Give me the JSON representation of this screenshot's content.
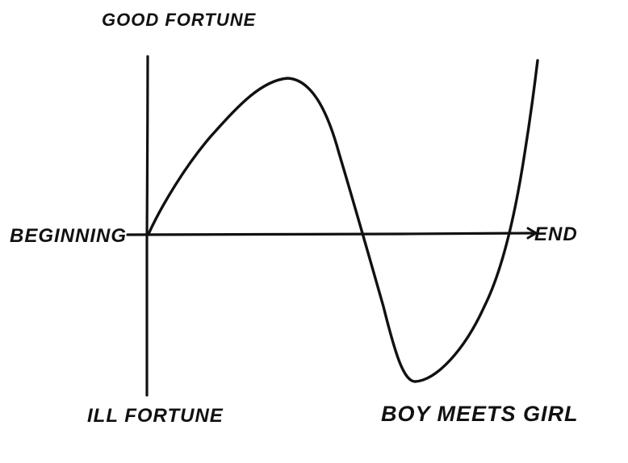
{
  "diagram": {
    "top_label": "GOOD FORTUNE",
    "bottom_label": "ILL FORTUNE",
    "left_label": "BEGINNING",
    "right_label": "END",
    "curve_label": "BOY MEETS GIRL",
    "ink_color": "#111111"
  }
}
